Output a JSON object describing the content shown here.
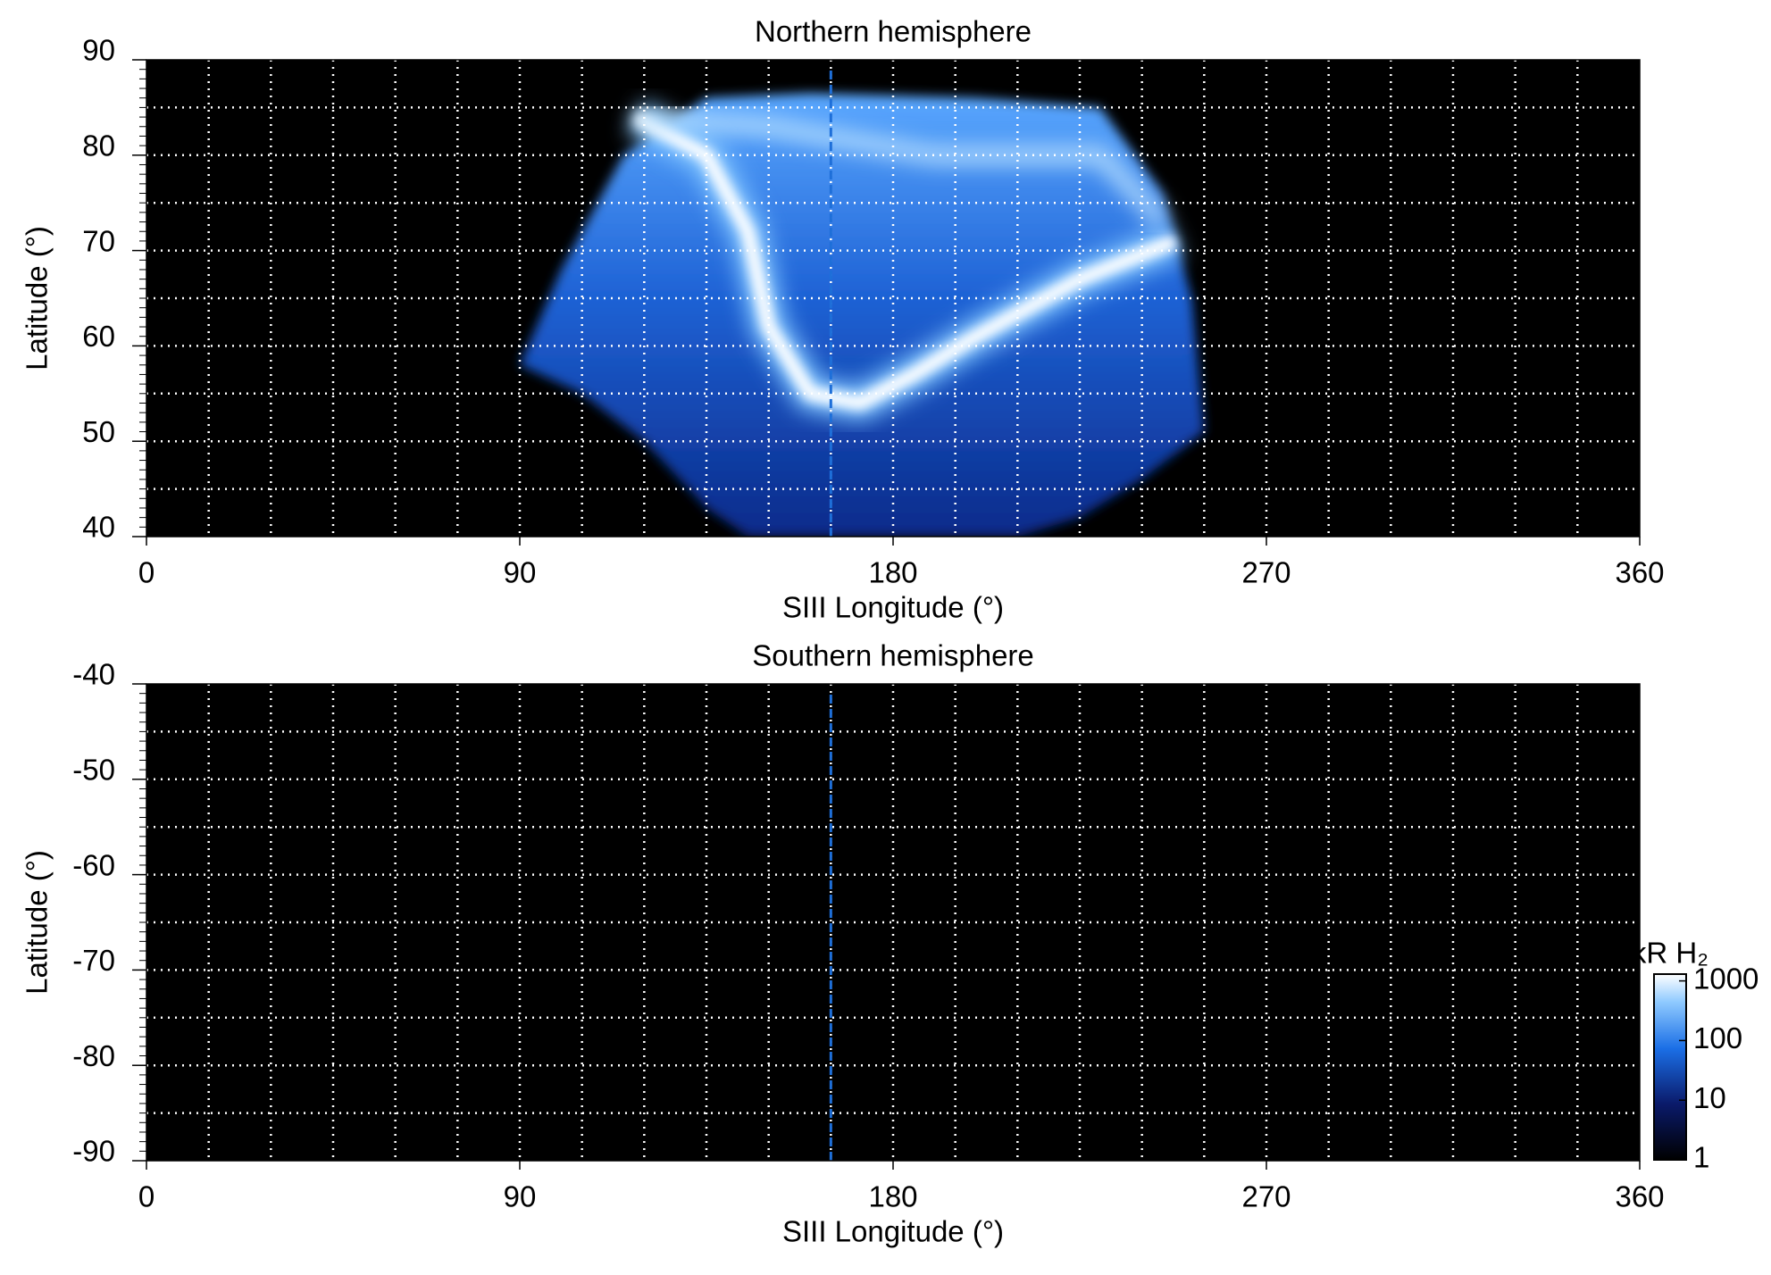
{
  "chart_data": [
    {
      "type": "heatmap",
      "title": "Northern hemisphere",
      "xlabel": "SIII Longitude (°)",
      "ylabel": "Latitude (°)",
      "xlim": [
        0,
        360
      ],
      "xticks": [
        0,
        90,
        180,
        270,
        360
      ],
      "ylim": [
        40,
        90
      ],
      "yticks": [
        40,
        50,
        60,
        70,
        80,
        90
      ],
      "grid": true,
      "grid_step_x": 15,
      "grid_step_y": 5,
      "marker_longitude": 165,
      "marker_color": "#1e6fd9"
    },
    {
      "type": "heatmap",
      "title": "Southern hemisphere",
      "xlabel": "SIII Longitude (°)",
      "ylabel": "Latitude (°)",
      "xlim": [
        0,
        360
      ],
      "xticks": [
        0,
        90,
        180,
        270,
        360
      ],
      "ylim": [
        -90,
        -40
      ],
      "yticks": [
        -90,
        -80,
        -70,
        -60,
        -50,
        -40
      ],
      "grid": true,
      "grid_step_x": 15,
      "grid_step_y": 5,
      "marker_longitude": 165,
      "marker_color": "#1e6fd9"
    }
  ],
  "colorbar": {
    "label": "kR H₂",
    "scale": "log",
    "lim": [
      1,
      1300
    ],
    "ticks": [
      1,
      10,
      100,
      1000
    ]
  }
}
